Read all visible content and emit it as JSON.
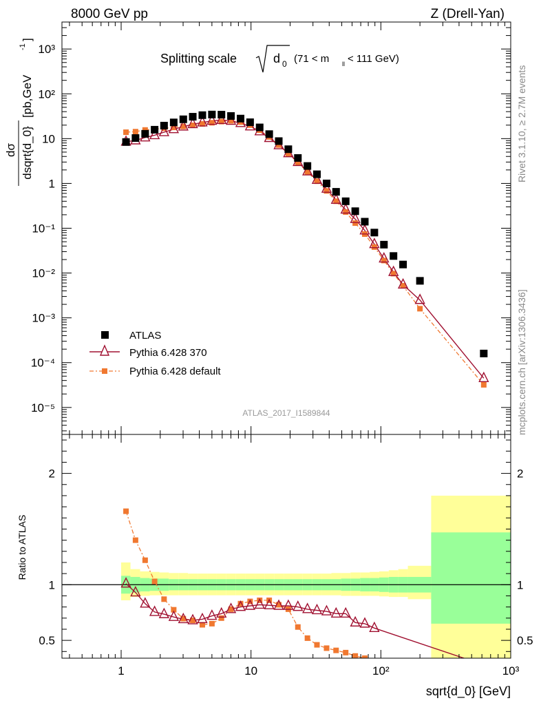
{
  "header": {
    "left": "8000 GeV pp",
    "right": "Z (Drell-Yan)"
  },
  "side_text": {
    "rivet": "Rivet 3.1.10, ≥ 2.7M events",
    "mcplots": "mcplots.cern.ch [arXiv:1306.3436]"
  },
  "main": {
    "title_prefix": "Splitting scale",
    "title_sym": "d",
    "title_sub": "0",
    "title_range_a": "(71 < m",
    "title_range_sub": "ll",
    "title_range_b": " < 111 GeV)",
    "ylabel": "dσ/dsqrt{d_0} [pb,GeV⁻¹]",
    "ylabel_num": "dσ",
    "ylabel_den": "dsqrt{d_0}",
    "ylabel_unit_a": " [pb,GeV",
    "ylabel_unit_sup": "-1",
    "ylabel_unit_b": "]",
    "watermark": "ATLAS_2017_I1589844"
  },
  "ratio": {
    "ylabel": "Ratio to ATLAS"
  },
  "xlabel": "sqrt{d_0} [GeV]",
  "legend": [
    {
      "label": "ATLAS"
    },
    {
      "label": "Pythia 6.428 370"
    },
    {
      "label": "Pythia 6.428 default"
    }
  ],
  "colors": {
    "atlas": "#000000",
    "pythia370": "#a01030",
    "pythiadefault": "#f07830",
    "band_inner": "#99ff99",
    "band_outer": "#ffff99"
  },
  "chart_data": [
    {
      "type": "scatter",
      "x_scale": "log",
      "y_scale": "log",
      "xlim": [
        0.35,
        1000
      ],
      "ylim": [
        2.5e-06,
        4000
      ],
      "xticks": [
        "1",
        "10",
        "10²",
        "10³"
      ],
      "yticks": [
        "10⁻⁵",
        "10⁻⁴",
        "10⁻³",
        "10⁻²",
        "10⁻¹",
        "1",
        "10",
        "10²",
        "10³"
      ],
      "x": [
        1.09,
        1.29,
        1.53,
        1.81,
        2.14,
        2.54,
        3.01,
        3.56,
        4.22,
        5.0,
        5.92,
        7.01,
        8.31,
        9.84,
        11.66,
        13.81,
        16.36,
        19.38,
        22.96,
        27.2,
        32.2,
        38.2,
        45.2,
        53.6,
        63.5,
        75.2,
        89.1,
        105.6,
        125.1,
        148.2,
        200,
        620
      ],
      "series": [
        {
          "name": "ATLAS",
          "style": "markers",
          "marker": "square",
          "values": [
            8.4,
            10.3,
            12.8,
            15.8,
            19.5,
            23.0,
            27.0,
            30.8,
            33.4,
            34.5,
            34.3,
            32.0,
            28.0,
            23.2,
            17.8,
            12.6,
            8.8,
            5.8,
            3.7,
            2.45,
            1.6,
            1.0,
            0.65,
            0.4,
            0.24,
            0.14,
            0.08,
            0.043,
            0.024,
            0.0155,
            0.0067,
            0.00016
          ]
        },
        {
          "name": "Pythia 6.428 370",
          "style": "line+markers",
          "marker": "open-triangle",
          "values": [
            8.5,
            9.1,
            10.6,
            11.9,
            13.9,
            16.2,
            18.5,
            21.0,
            22.9,
            24.9,
            26.0,
            24.9,
            22.2,
            18.7,
            14.5,
            10.3,
            7.1,
            4.7,
            3.0,
            1.85,
            1.2,
            0.76,
            0.43,
            0.26,
            0.16,
            0.089,
            0.044,
            0.021,
            0.0105,
            0.0055,
            0.0025,
            4.5e-05
          ]
        },
        {
          "name": "Pythia 6.428 default",
          "style": "dashdot+markers",
          "marker": "filled-square",
          "values": [
            13.9,
            14.3,
            15.6,
            16.3,
            17.0,
            17.8,
            18.7,
            19.8,
            21.3,
            22.6,
            24.0,
            25.0,
            23.4,
            20.0,
            15.4,
            10.9,
            7.2,
            4.6,
            2.9,
            1.8,
            1.12,
            0.68,
            0.4,
            0.23,
            0.13,
            0.074,
            0.038,
            0.019,
            0.0097,
            0.0052,
            0.0016,
            3.2e-05
          ]
        }
      ]
    },
    {
      "type": "line",
      "x_scale": "log",
      "xlim": [
        0.35,
        1000
      ],
      "ylim": [
        0.34,
        2.35
      ],
      "yticks": [
        "0.5",
        "1",
        "2"
      ],
      "x": [
        1.09,
        1.29,
        1.53,
        1.81,
        2.14,
        2.54,
        3.01,
        3.56,
        4.22,
        5.0,
        5.92,
        7.01,
        8.31,
        9.84,
        11.66,
        13.81,
        16.36,
        19.38,
        22.96,
        27.2,
        32.2,
        38.2,
        45.2,
        53.6,
        63.5,
        75.2,
        89.1,
        105.6,
        125.1,
        148.2,
        200,
        620
      ],
      "uncertainty_bands": {
        "edges": [
          1.0,
          1.18,
          1.4,
          1.66,
          1.97,
          2.33,
          2.76,
          3.27,
          3.88,
          4.6,
          5.45,
          6.45,
          7.65,
          9.06,
          10.73,
          12.71,
          15.06,
          17.84,
          21.13,
          25.03,
          29.65,
          35.1,
          41.6,
          49.3,
          58.4,
          69.2,
          82.0,
          97.1,
          115.0,
          136.2,
          161.4,
          244,
          1000
        ],
        "inner_lo": [
          0.92,
          0.93,
          0.94,
          0.945,
          0.945,
          0.95,
          0.95,
          0.95,
          0.95,
          0.95,
          0.95,
          0.95,
          0.95,
          0.95,
          0.95,
          0.95,
          0.95,
          0.95,
          0.95,
          0.95,
          0.95,
          0.95,
          0.95,
          0.945,
          0.945,
          0.94,
          0.94,
          0.935,
          0.93,
          0.93,
          0.93,
          0.65
        ],
        "inner_hi": [
          1.08,
          1.07,
          1.06,
          1.055,
          1.055,
          1.05,
          1.05,
          1.05,
          1.05,
          1.05,
          1.05,
          1.05,
          1.05,
          1.05,
          1.05,
          1.05,
          1.05,
          1.05,
          1.05,
          1.05,
          1.05,
          1.05,
          1.05,
          1.055,
          1.055,
          1.06,
          1.06,
          1.065,
          1.07,
          1.07,
          1.07,
          1.47
        ],
        "outer_lo": [
          0.86,
          0.89,
          0.9,
          0.905,
          0.905,
          0.905,
          0.905,
          0.905,
          0.905,
          0.905,
          0.905,
          0.905,
          0.905,
          0.905,
          0.905,
          0.905,
          0.905,
          0.905,
          0.905,
          0.905,
          0.905,
          0.905,
          0.905,
          0.9,
          0.9,
          0.9,
          0.9,
          0.895,
          0.89,
          0.89,
          0.87,
          0.33
        ],
        "outer_hi": [
          1.2,
          1.14,
          1.12,
          1.115,
          1.11,
          1.105,
          1.105,
          1.1,
          1.1,
          1.1,
          1.1,
          1.1,
          1.1,
          1.1,
          1.1,
          1.1,
          1.1,
          1.1,
          1.1,
          1.1,
          1.1,
          1.1,
          1.105,
          1.105,
          1.11,
          1.11,
          1.115,
          1.12,
          1.13,
          1.14,
          1.17,
          1.8
        ]
      },
      "series": [
        {
          "name": "Pythia 6.428 370",
          "values": [
            1.01,
            0.93,
            0.83,
            0.755,
            0.735,
            0.71,
            0.69,
            0.68,
            0.69,
            0.72,
            0.74,
            0.78,
            0.8,
            0.81,
            0.82,
            0.815,
            0.81,
            0.81,
            0.8,
            0.78,
            0.77,
            0.76,
            0.74,
            0.74,
            0.66,
            0.65,
            0.61,
            null,
            null,
            null,
            null,
            null
          ],
          "line_tail": [
            [
              620,
              0.28
            ]
          ]
        },
        {
          "name": "Pythia 6.428 default",
          "values": [
            1.66,
            1.4,
            1.22,
            1.03,
            0.87,
            0.775,
            0.695,
            0.68,
            0.64,
            0.65,
            0.7,
            0.78,
            0.83,
            0.85,
            0.86,
            0.86,
            0.82,
            0.78,
            0.62,
            0.52,
            0.46,
            0.43,
            0.41,
            0.39,
            0.36,
            0.34,
            null,
            null,
            null,
            null,
            null,
            null
          ]
        }
      ]
    }
  ]
}
